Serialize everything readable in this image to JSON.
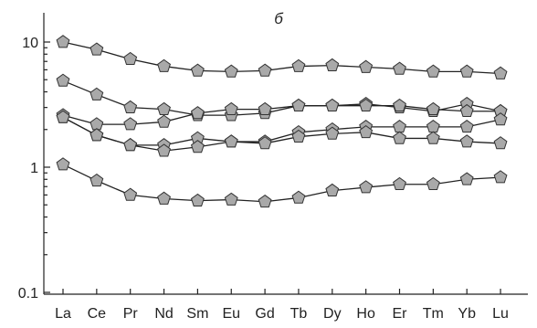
{
  "chart_data": {
    "type": "line",
    "title": "",
    "panel_label": "б",
    "xlabel": "",
    "ylabel": "",
    "y_scale": "log",
    "ylim": [
      0.1,
      20
    ],
    "y_ticks": [
      {
        "value": 10,
        "label": "10"
      },
      {
        "value": 1,
        "label": "1"
      },
      {
        "value": 0.1,
        "label": "0.1"
      }
    ],
    "grid": false,
    "legend": "none",
    "marker": "pentagon",
    "marker_fill": "#a9a9a9",
    "line_color": "#222222",
    "categories": [
      "La",
      "Ce",
      "Pr",
      "Nd",
      "Sm",
      "Eu",
      "Gd",
      "Tb",
      "Dy",
      "Ho",
      "Er",
      "Tm",
      "Yb",
      "Lu"
    ],
    "series": [
      {
        "values": [
          10.0,
          8.7,
          7.3,
          6.4,
          5.9,
          5.8,
          5.9,
          6.4,
          6.5,
          6.3,
          6.1,
          5.8,
          5.8,
          5.6
        ]
      },
      {
        "values": [
          4.9,
          3.8,
          3.0,
          2.9,
          2.6,
          2.6,
          2.7,
          3.1,
          3.1,
          3.2,
          3.0,
          2.8,
          3.2,
          2.8
        ]
      },
      {
        "values": [
          2.6,
          2.2,
          2.2,
          2.3,
          2.7,
          2.9,
          2.9,
          3.1,
          3.1,
          3.1,
          3.1,
          2.9,
          2.8,
          2.8
        ]
      },
      {
        "values": [
          2.5,
          1.8,
          1.5,
          1.5,
          1.7,
          1.6,
          1.6,
          1.9,
          2.0,
          2.1,
          2.1,
          2.1,
          2.1,
          2.4
        ]
      },
      {
        "values": [
          2.5,
          1.8,
          1.5,
          1.35,
          1.45,
          1.6,
          1.55,
          1.75,
          1.85,
          1.9,
          1.7,
          1.7,
          1.6,
          1.55
        ]
      },
      {
        "values": [
          1.05,
          0.78,
          0.6,
          0.56,
          0.54,
          0.55,
          0.53,
          0.57,
          0.65,
          0.69,
          0.73,
          0.73,
          0.8,
          0.83
        ]
      }
    ]
  }
}
